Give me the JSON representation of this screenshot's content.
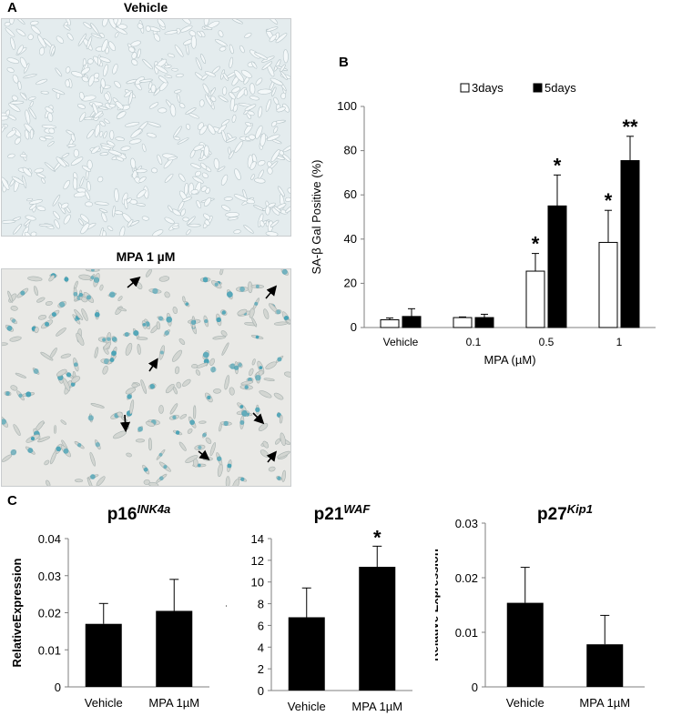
{
  "panels": {
    "a": "A",
    "b": "B",
    "c": "C"
  },
  "micrographs": [
    {
      "title": "Vehicle",
      "stain": "none"
    },
    {
      "title": "MPA 1 µM",
      "stain": "blue"
    }
  ],
  "colors": {
    "open_bar": "#ffffff",
    "filled_bar": "#000000",
    "stain": "#3f9fb4",
    "background_vehicle": "#e4ecee",
    "background_mpa": "#e9e9e6"
  },
  "chart_data": [
    {
      "id": "sa-beta-gal",
      "type": "bar",
      "title": "",
      "xlabel": "MPA (µM)",
      "ylabel": "SA-β Gal Positive (%)",
      "categories": [
        "Vehicle",
        "0.1",
        "0.5",
        "1"
      ],
      "ylim": [
        0,
        100
      ],
      "yticks": [
        "0",
        "20",
        "40",
        "60",
        "80",
        "100"
      ],
      "legend": "top",
      "series": [
        {
          "name": "3days",
          "values": [
            3.5,
            4.5,
            25.5,
            38.5
          ],
          "errors": [
            0.8,
            0.3,
            8,
            14.5
          ],
          "significance": [
            "",
            "",
            "*",
            "*"
          ]
        },
        {
          "name": "5days",
          "values": [
            5,
            4.5,
            55,
            75.5
          ],
          "errors": [
            3.5,
            1.5,
            14,
            11
          ],
          "significance": [
            "",
            "",
            "*",
            "**"
          ]
        }
      ]
    },
    {
      "id": "p16",
      "type": "bar",
      "title": "p16",
      "title_sup": "INK4a",
      "ylabel": "RelativeExpression",
      "categories": [
        "Vehicle",
        "MPA 1µM"
      ],
      "ylim": [
        0,
        0.04
      ],
      "yticks": [
        "0",
        "0.01",
        "0.02",
        "0.03",
        "0.04"
      ],
      "values": [
        0.017,
        0.0205
      ],
      "errors": [
        0.0055,
        0.0085
      ],
      "significance": [
        "",
        ""
      ]
    },
    {
      "id": "p21",
      "type": "bar",
      "title": "p21",
      "title_sup": "WAF",
      "ylabel": "Relative Expression",
      "categories": [
        "Vehicle",
        "MPA 1µM"
      ],
      "ylim": [
        0,
        14
      ],
      "yticks": [
        "0",
        "2",
        "4",
        "6",
        "8",
        "10",
        "12",
        "14"
      ],
      "values": [
        6.75,
        11.4
      ],
      "errors": [
        2.7,
        1.9
      ],
      "significance": [
        "",
        "*"
      ]
    },
    {
      "id": "p27",
      "type": "bar",
      "title": "p27",
      "title_sup": "Kip1",
      "ylabel": "Relative Expression",
      "categories": [
        "Vehicle",
        "MPA 1µM"
      ],
      "ylim": [
        0,
        0.03
      ],
      "yticks": [
        "0",
        "0.01",
        "0.02",
        "0.03"
      ],
      "values": [
        0.0154,
        0.0078
      ],
      "errors": [
        0.0065,
        0.0053
      ],
      "significance": [
        "",
        ""
      ]
    }
  ]
}
